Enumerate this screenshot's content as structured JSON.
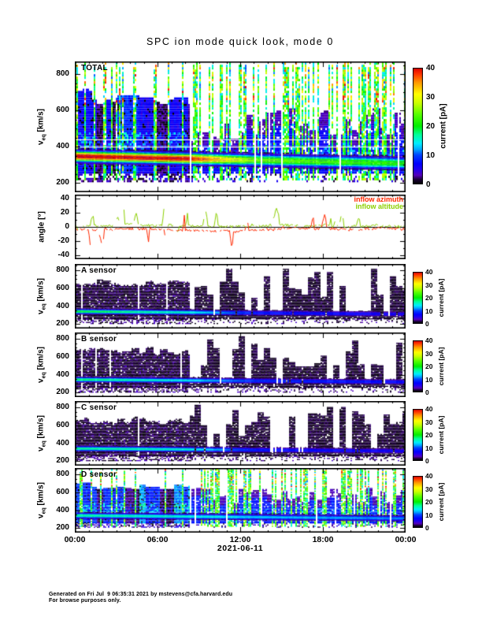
{
  "page": {
    "title": "SPC ion mode quick look, mode 0",
    "footer_line1": "Generated on Fri Jul  9 06:35:31 2021 by mstevens@cfa.harvard.edu",
    "footer_line2": "For browse purposes only."
  },
  "chart_data": {
    "type": "heatmap",
    "title": "SPC ion mode quick look, mode 0",
    "axis_color": "#000000",
    "x_axis": {
      "tick_labels": [
        "00:00",
        "06:00",
        "12:00",
        "18:00",
        "00:00"
      ],
      "tick_hours": [
        0,
        6,
        12,
        18,
        24
      ],
      "minor_tick_every_hours": 1,
      "range_hours": [
        0,
        24
      ],
      "date_label": "2021-06-11"
    },
    "colormap_stops": [
      [
        0,
        "#000000"
      ],
      [
        1.5,
        "#1a0033"
      ],
      [
        3,
        "#5500bb"
      ],
      [
        5,
        "#2200ee"
      ],
      [
        7,
        "#0000ff"
      ],
      [
        10,
        "#0044ff"
      ],
      [
        12,
        "#00aaff"
      ],
      [
        14,
        "#00eeff"
      ],
      [
        17,
        "#00ff99"
      ],
      [
        20,
        "#00ee00"
      ],
      [
        24,
        "#55ff00"
      ],
      [
        28,
        "#ccff00"
      ],
      [
        31,
        "#ffff00"
      ],
      [
        35,
        "#ff9900"
      ],
      [
        38,
        "#ff3300"
      ],
      [
        40,
        "#dd0000"
      ]
    ],
    "panels": [
      {
        "id": "total",
        "kind": "spectrogram",
        "label": "TOTAL",
        "ylabel": {
          "base": "v",
          "sub": "eq",
          "unit": " [km/s]"
        },
        "y_ticks": [
          200,
          400,
          600,
          800
        ],
        "y_minor_step": 50,
        "y_range": [
          150,
          870
        ],
        "colorbar": {
          "label": "current [pA]",
          "ticks": [
            0,
            10,
            20,
            30,
            40
          ],
          "range": [
            0,
            40
          ],
          "size": "large"
        },
        "render": {
          "seed": 7,
          "style": "total",
          "dense_end": 0.345,
          "env_top_dense": 655,
          "env_top_sparse": 520,
          "beam_v": [
            345,
            306
          ],
          "beam_halfwidth": 26,
          "beam_peak": [
            40,
            39,
            25,
            21
          ],
          "stripe_chance_dense": 0.16,
          "stripe_chance_sparse": 0.5,
          "gap_chance": 0.1,
          "white_lines": [
            440,
            402
          ]
        },
        "description": "All-sensor proton velocity spectrogram: bright 35-40 pA beam at 310-350 km/s before ~08:00 weakening to ~20 pA near 305-315 km/s after; 5-10 pA background between 250 and 650 km/s; frequent full-range 15-40 pA scan stripes."
      },
      {
        "id": "angle",
        "kind": "line",
        "ylabel": {
          "base": "angle [°]",
          "sub": "",
          "unit": ""
        },
        "y_ticks": [
          -40,
          -20,
          0,
          20,
          40
        ],
        "y_minor_step": 10,
        "y_range": [
          -45,
          45
        ],
        "zero_line": 0,
        "series": [
          {
            "name": "inflow azimuth",
            "color": "#ff2800",
            "baseline": -3,
            "spike_up": 30,
            "spike_down": -26,
            "seed": 21
          },
          {
            "name": "inflow altitude",
            "color": "#8cd000",
            "baseline": 2,
            "spike_up": 25,
            "spike_down": -10,
            "seed": 22
          }
        ],
        "description": "Inflow angles jitter within about ±10° of 0° with repeated spikes to ±20-30° throughout the day."
      },
      {
        "id": "a",
        "kind": "spectrogram",
        "label": "A sensor",
        "ylabel": {
          "base": "v",
          "sub": "eq",
          "unit": " [km/s]"
        },
        "y_ticks": [
          200,
          400,
          600,
          800
        ],
        "y_minor_step": 50,
        "y_range": [
          150,
          870
        ],
        "colorbar": {
          "label": "current [pA]",
          "ticks": [
            0,
            10,
            20,
            30,
            40
          ],
          "range": [
            0,
            40
          ],
          "size": "small"
        },
        "render": {
          "seed": 31,
          "style": "dark",
          "dense_end": 0.345,
          "env_top_dense": 645,
          "env_top_sparse": 630,
          "beam_v": [
            340,
            310
          ],
          "beam_halfwidth": 22,
          "beam_peak": [
            19,
            15,
            8,
            6
          ],
          "stripe_chance_dense": 0,
          "stripe_chance_sparse": 0,
          "gap_chance": 0.18,
          "white_lines": []
        },
        "description": "A sensor: near-black 0-5 pA background 250-650 km/s; 15-20 pA cyan-green beam near 330-340 km/s before ~08:00 fading to faint 5-8 pA purple band afterwards."
      },
      {
        "id": "b",
        "kind": "spectrogram",
        "label": "B sensor",
        "ylabel": {
          "base": "v",
          "sub": "eq",
          "unit": " [km/s]"
        },
        "y_ticks": [
          200,
          400,
          600,
          800
        ],
        "y_minor_step": 50,
        "y_range": [
          150,
          870
        ],
        "colorbar": {
          "label": "current [pA]",
          "ticks": [
            0,
            10,
            20,
            30,
            40
          ],
          "range": [
            0,
            40
          ],
          "size": "small"
        },
        "render": {
          "seed": 37,
          "style": "dark",
          "dense_end": 0.345,
          "env_top_dense": 645,
          "env_top_sparse": 630,
          "beam_v": [
            345,
            318
          ],
          "beam_halfwidth": 22,
          "beam_peak": [
            18,
            14,
            9,
            7
          ],
          "stripe_chance_dense": 0,
          "stripe_chance_sparse": 0,
          "gap_chance": 0.18,
          "white_lines": []
        },
        "description": "B sensor: near-black 0-5 pA background; 14-18 pA green beam near 330-345 km/s early, fading to 7-9 pA blue-purple band on the right half."
      },
      {
        "id": "c",
        "kind": "spectrogram",
        "label": "C sensor",
        "ylabel": {
          "base": "v",
          "sub": "eq",
          "unit": " [km/s]"
        },
        "y_ticks": [
          200,
          400,
          600,
          800
        ],
        "y_minor_step": 50,
        "y_range": [
          150,
          870
        ],
        "colorbar": {
          "label": "current [pA]",
          "ticks": [
            0,
            10,
            20,
            30,
            40
          ],
          "range": [
            0,
            40
          ],
          "size": "small"
        },
        "render": {
          "seed": 41,
          "style": "dark",
          "dense_end": 0.345,
          "env_top_dense": 645,
          "env_top_sparse": 630,
          "beam_v": [
            340,
            312
          ],
          "beam_halfwidth": 22,
          "beam_peak": [
            17,
            15,
            8,
            6
          ],
          "stripe_chance_dense": 0,
          "stripe_chance_sparse": 0,
          "gap_chance": 0.18,
          "white_lines": []
        },
        "description": "C sensor: near-black 0-5 pA background; 15-17 pA cyan-green beam near 330-340 km/s early, fading to faint 6-8 pA purple band afterwards."
      },
      {
        "id": "d",
        "kind": "spectrogram",
        "label": "D sensor",
        "ylabel": {
          "base": "v",
          "sub": "eq",
          "unit": " [km/s]"
        },
        "y_ticks": [
          200,
          400,
          600,
          800
        ],
        "y_minor_step": 50,
        "y_range": [
          150,
          870
        ],
        "colorbar": {
          "label": "current [pA]",
          "ticks": [
            0,
            10,
            20,
            30,
            40
          ],
          "range": [
            0,
            40
          ],
          "size": "small"
        },
        "render": {
          "seed": 47,
          "style": "blue",
          "dense_end": 0.345,
          "env_top_dense": 650,
          "env_top_sparse": 560,
          "beam_v": [
            340,
            308
          ],
          "beam_halfwidth": 24,
          "beam_peak": [
            17,
            15,
            13,
            11
          ],
          "stripe_chance_dense": 0.15,
          "stripe_chance_sparse": 0.42,
          "gap_chance": 0.12,
          "white_lines": []
        },
        "description": "D sensor: blue 5-10 pA background 250-650 km/s with 11-17 pA cyan beam near 310-340 km/s persisting all day; colorful full-range scan stripes like the TOTAL panel."
      }
    ]
  }
}
